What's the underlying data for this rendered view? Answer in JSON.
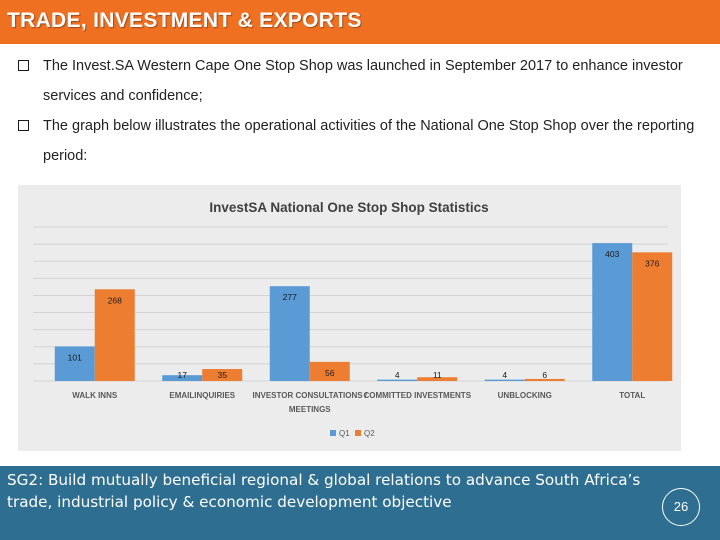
{
  "header": {
    "title": "TRADE, INVESTMENT & EXPORTS"
  },
  "bullets": [
    "The Invest.SA Western Cape One Stop Shop was launched in September 2017 to enhance investor services and confidence;",
    "The graph below illustrates the operational activities of the National One Stop Shop over the reporting period:"
  ],
  "footer": {
    "text": "SG2:  Build mutually beneficial regional & global relations to advance South Africa’s trade, industrial policy & economic development  objective",
    "page_number": "26"
  },
  "colors": {
    "header": "#f07022",
    "footer": "#2d6e91",
    "q1": "#5b9bd5",
    "q2": "#ed7d31"
  },
  "chart_data": {
    "type": "bar",
    "title": "InvestSA National One Stop Shop Statistics",
    "categories": [
      "WALK INNS",
      "EMAILINQUIRIES",
      "INVESTOR CONSULTATIONS / MEETINGS",
      "COMMITTED INVESTMENTS",
      "UNBLOCKING",
      "TOTAL"
    ],
    "series": [
      {
        "name": "Q1",
        "color": "#5b9bd5",
        "values": [
          101,
          17,
          277,
          4,
          4,
          403
        ]
      },
      {
        "name": "Q2",
        "color": "#ed7d31",
        "values": [
          268,
          35,
          56,
          11,
          6,
          376
        ]
      }
    ],
    "ylim": [
      0,
      450
    ],
    "grid": true,
    "legend": "bottom"
  }
}
